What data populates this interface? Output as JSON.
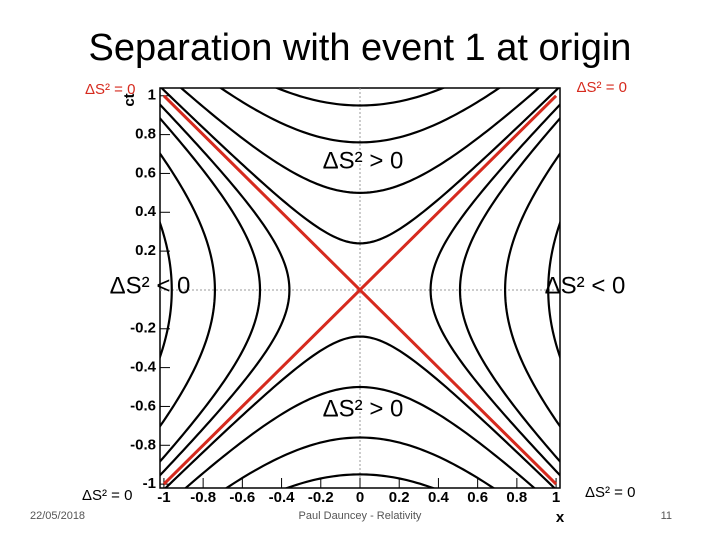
{
  "slide": {
    "title": "Separation with event 1 at origin",
    "date": "22/05/2018",
    "footer": "Paul Dauncey - Relativity",
    "page": "11"
  },
  "chart_data": {
    "type": "hyperbola",
    "x_label": "x",
    "y_label": "ct",
    "xlim": [
      -1.02,
      1.02
    ],
    "ylim": [
      -1.02,
      1.04
    ],
    "xticks": [
      -1,
      -0.8,
      -0.6,
      -0.4,
      -0.2,
      0,
      0.2,
      0.4,
      0.6,
      0.8,
      1
    ],
    "yticks": [
      -1,
      -0.8,
      -0.6,
      -0.4,
      -0.2,
      0.2,
      0.4,
      0.6,
      0.8,
      1
    ],
    "timelike_intercepts": [
      0.24,
      0.5,
      0.76,
      0.95
    ],
    "spacelike_intercepts": [
      0.36,
      0.51,
      0.74,
      0.96
    ],
    "curve_color": "#000000",
    "light_cone": {
      "color": "#d62a1e",
      "x": [
        -1,
        1
      ],
      "series": [
        {
          "values": [
            -1,
            1
          ]
        },
        {
          "values": [
            1,
            -1
          ]
        }
      ]
    },
    "annotations": {
      "null_top_left": "ΔS² = 0",
      "null_top_right": "ΔS² = 0",
      "null_bottom_left": "ΔS² = 0",
      "null_bottom_right": "ΔS² = 0",
      "time_top": "ΔS² > 0",
      "time_bottom": "ΔS² > 0",
      "space_left": "ΔS² < 0",
      "space_right": "ΔS² < 0"
    }
  }
}
